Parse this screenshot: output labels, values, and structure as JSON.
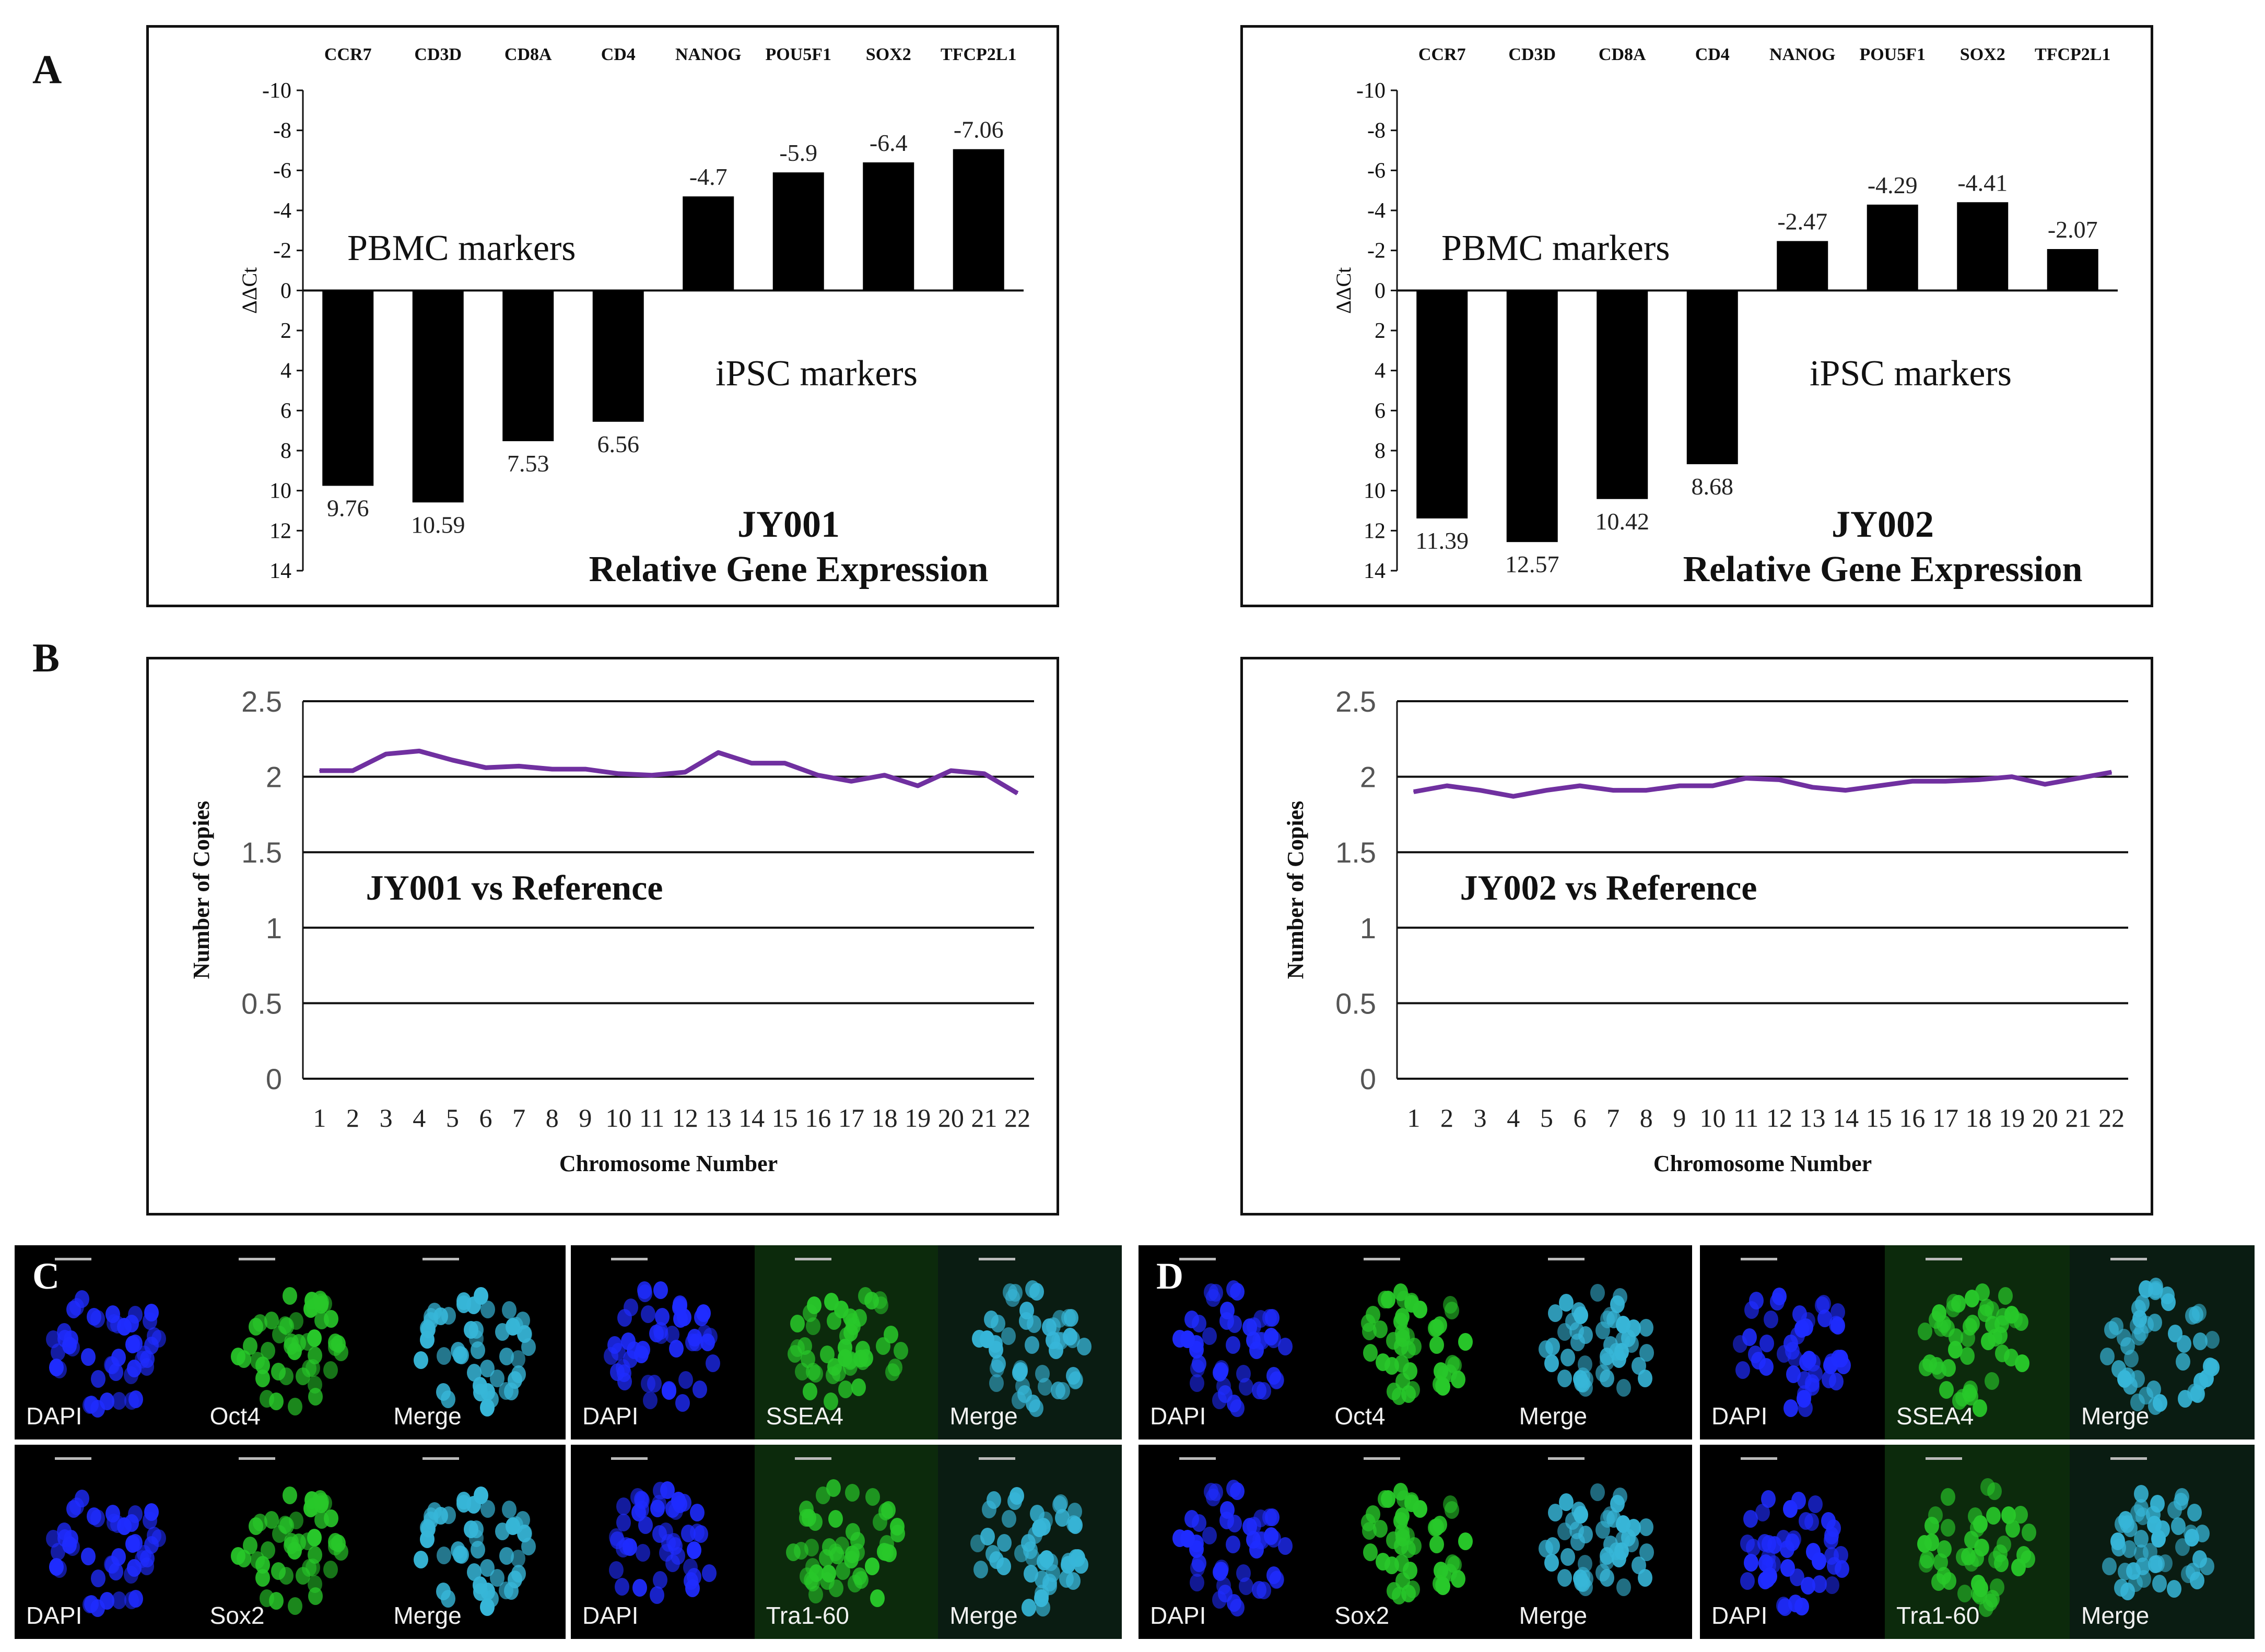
{
  "panel_labels": {
    "a": "A",
    "b": "B",
    "c": "C",
    "d": "D"
  },
  "chart_data": [
    {
      "id": "jy001-expression",
      "type": "bar",
      "categories": [
        "CCR7",
        "CD3D",
        "CD8A",
        "CD4",
        "NANOG",
        "POU5F1",
        "SOX2",
        "TFCP2L1"
      ],
      "values": [
        9.76,
        10.59,
        7.53,
        6.56,
        -4.7,
        -5.9,
        -6.4,
        -7.06
      ],
      "value_labels": [
        "9.76",
        "10.59",
        "7.53",
        "6.56",
        "-4.7",
        "-5.9",
        "-6.4",
        "-7.06"
      ],
      "ylabel": "ΔΔCt",
      "ylim": [
        -10,
        14
      ],
      "y_inverted": true,
      "yticks": [
        -10,
        -8,
        -6,
        -4,
        -2,
        0,
        2,
        4,
        6,
        8,
        10,
        12,
        14
      ],
      "annotations": {
        "pbmc": "PBMC markers",
        "ipsc": "iPSC markers",
        "sample": "JY001",
        "title": "Relative Gene Expression"
      }
    },
    {
      "id": "jy002-expression",
      "type": "bar",
      "categories": [
        "CCR7",
        "CD3D",
        "CD8A",
        "CD4",
        "NANOG",
        "POU5F1",
        "SOX2",
        "TFCP2L1"
      ],
      "values": [
        11.39,
        12.57,
        10.42,
        8.68,
        -2.47,
        -4.29,
        -4.41,
        -2.07
      ],
      "value_labels": [
        "11.39",
        "12.57",
        "10.42",
        "8.68",
        "-2.47",
        "-4.29",
        "-4.41",
        "-2.07"
      ],
      "ylabel": "ΔΔCt",
      "ylim": [
        -10,
        14
      ],
      "y_inverted": true,
      "yticks": [
        -10,
        -8,
        -6,
        -4,
        -2,
        0,
        2,
        4,
        6,
        8,
        10,
        12,
        14
      ],
      "annotations": {
        "pbmc": "PBMC markers",
        "ipsc": "iPSC markers",
        "sample": "JY002",
        "title": "Relative Gene Expression"
      }
    },
    {
      "id": "jy001-copies",
      "type": "line",
      "x": [
        1,
        2,
        3,
        4,
        5,
        6,
        7,
        8,
        9,
        10,
        11,
        12,
        13,
        14,
        15,
        16,
        17,
        18,
        19,
        20,
        21,
        22
      ],
      "series": [
        {
          "name": "JY001 vs Reference",
          "values": [
            2.04,
            2.04,
            2.15,
            2.17,
            2.11,
            2.06,
            2.07,
            2.05,
            2.05,
            2.02,
            2.01,
            2.03,
            2.16,
            2.09,
            2.09,
            2.01,
            1.97,
            2.01,
            1.94,
            2.04,
            2.02,
            1.89
          ],
          "color": "#7030a0"
        }
      ],
      "xlabel": "Chromosome Number",
      "ylabel": "Number of Copies",
      "ylim": [
        0,
        2.5
      ],
      "yticks": [
        "0",
        "0.5",
        "1",
        "1.5",
        "2",
        "2.5"
      ],
      "title": "JY001 vs Reference"
    },
    {
      "id": "jy002-copies",
      "type": "line",
      "x": [
        1,
        2,
        3,
        4,
        5,
        6,
        7,
        8,
        9,
        10,
        11,
        12,
        13,
        14,
        15,
        16,
        17,
        18,
        19,
        20,
        21,
        22
      ],
      "series": [
        {
          "name": "JY002 vs Reference",
          "values": [
            1.9,
            1.94,
            1.91,
            1.87,
            1.91,
            1.94,
            1.91,
            1.91,
            1.94,
            1.94,
            1.99,
            1.98,
            1.93,
            1.91,
            1.94,
            1.97,
            1.97,
            1.98,
            2.0,
            1.95,
            1.99,
            2.03
          ],
          "color": "#7030a0"
        }
      ],
      "xlabel": "Chromosome Number",
      "ylabel": "Number of Copies",
      "ylim": [
        0,
        2.5
      ],
      "yticks": [
        "0",
        "0.5",
        "1",
        "1.5",
        "2",
        "2.5"
      ],
      "title": "JY002 vs Reference"
    }
  ],
  "microscopy": {
    "c": {
      "oct4": [
        "DAPI",
        "Oct4",
        "Merge"
      ],
      "ssea4": [
        "DAPI",
        "SSEA4",
        "Merge"
      ],
      "sox2": [
        "DAPI",
        "Sox2",
        "Merge"
      ],
      "tra160": [
        "DAPI",
        "Tra1-60",
        "Merge"
      ]
    },
    "d": {
      "oct4": [
        "DAPI",
        "Oct4",
        "Merge"
      ],
      "ssea4": [
        "DAPI",
        "SSEA4",
        "Merge"
      ],
      "sox2": [
        "DAPI",
        "Sox2",
        "Merge"
      ],
      "tra160": [
        "DAPI",
        "Tra1-60",
        "Merge"
      ]
    },
    "colors": {
      "dapi": "#1f2cff",
      "green": "#28c82a",
      "merge": "#37b6d8"
    }
  }
}
